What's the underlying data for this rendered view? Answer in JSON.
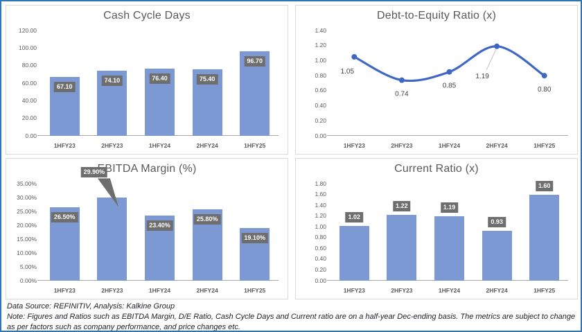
{
  "colors": {
    "bar_fill": "#7C99D4",
    "line_color": "#3F68C5",
    "label_box": "#6E6E6E",
    "title_color": "#595959",
    "axis_color": "#A6A6A6",
    "leader_line": "#BFBFBF",
    "frame_border": "#2E75B6",
    "panel_border": "#D9D9D9"
  },
  "chart_data": [
    {
      "type": "bar",
      "title": "Cash Cycle Days",
      "categories": [
        "1HFY23",
        "2HFY23",
        "1HFY24",
        "2HFY24",
        "1HFY25"
      ],
      "values": [
        67.1,
        74.1,
        76.4,
        75.4,
        96.7
      ],
      "data_labels": [
        "67.10",
        "74.10",
        "76.40",
        "75.40",
        "96.70"
      ],
      "ylim": [
        0,
        120
      ],
      "ytick_step": 20,
      "ytick_suffix": "",
      "label_position": "inside-top",
      "grid": false,
      "legend": false
    },
    {
      "type": "line",
      "title": "Debt-to-Equity Ratio (x)",
      "categories": [
        "1HFY23",
        "2HFY23",
        "1HFY24",
        "2HFY24",
        "1HFY25"
      ],
      "values": [
        1.05,
        0.74,
        0.85,
        1.19,
        0.8
      ],
      "data_labels": [
        "1.05",
        "0.74",
        "0.85",
        "1.19",
        "0.80"
      ],
      "ylim": [
        0,
        1.4
      ],
      "ytick_step": 0.2,
      "ytick_suffix": "",
      "label_position": "below-point",
      "callout_index": 3,
      "grid": false,
      "legend": false
    },
    {
      "type": "bar",
      "title": "EBITDA Margin (%)",
      "categories": [
        "1HFY23",
        "2HFY23",
        "1HFY24",
        "2HFY24",
        "1HFY25"
      ],
      "values": [
        26.5,
        29.9,
        23.4,
        25.8,
        19.1
      ],
      "data_labels": [
        "26.50%",
        "29.90%",
        "23.40%",
        "25.80%",
        "19.10%"
      ],
      "ylim": [
        0,
        35
      ],
      "ytick_step": 5,
      "ytick_suffix": "%",
      "label_position": "inside-top",
      "callout_index": 1,
      "grid": false,
      "legend": false
    },
    {
      "type": "bar",
      "title": "Current Ratio (x)",
      "categories": [
        "1HFY23",
        "2HFY23",
        "1HFY24",
        "2HFY24",
        "1HFY25"
      ],
      "values": [
        1.02,
        1.22,
        1.19,
        0.93,
        1.6
      ],
      "data_labels": [
        "1.02",
        "1.22",
        "1.19",
        "0.93",
        "1.60"
      ],
      "ylim": [
        0,
        1.8
      ],
      "ytick_step": 0.2,
      "ytick_suffix": "",
      "label_position": "above",
      "grid": false,
      "legend": false
    }
  ],
  "footer": {
    "source_line": "Data Source: REFINITIV, Analysis: Kalkine Group",
    "note_line": "Note: Figures and Ratios such as EBITDA Margin, D/E Ratio, Cash Cycle Days and Current ratio are on a half-year Dec-ending basis. The metrics are subject to change as per factors such as company performance, and price changes etc."
  }
}
